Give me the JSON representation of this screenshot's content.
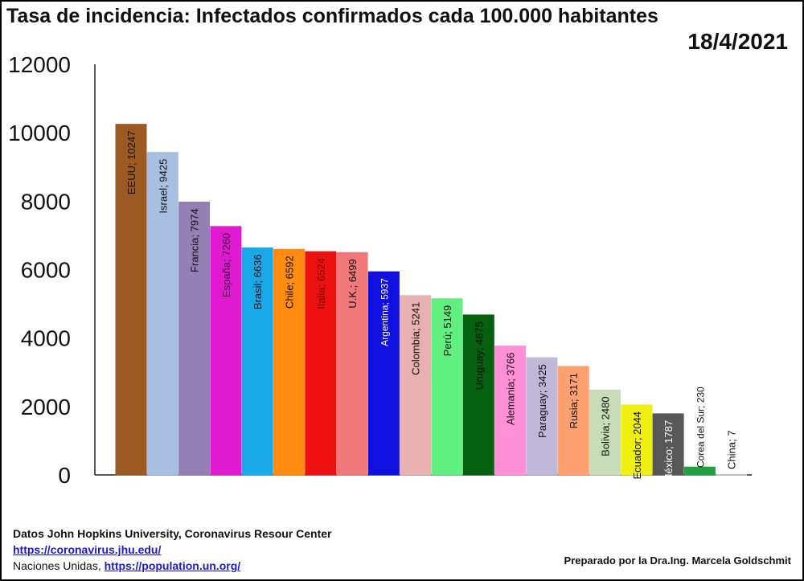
{
  "header": {
    "title": "Tasa de incidencia: Infectados confirmados cada 100.000 habitantes",
    "date": "18/4/2021"
  },
  "footer": {
    "source": "Datos  John Hopkins University, Coronavirus Resour Center",
    "link1": "https://coronavirus.jhu.edu/",
    "line3_prefix": "Naciones Unidas, ",
    "link2": "https://population.un.org/",
    "author": "Preparado por la Dra.Ing. Marcela Goldschmit"
  },
  "chart_data": {
    "type": "bar",
    "title": "Tasa de incidencia: Infectados confirmados cada 100.000 habitantes",
    "xlabel": "",
    "ylabel": "",
    "ylim": [
      0,
      12000
    ],
    "yticks": [
      "0",
      "2000",
      "4000",
      "6000",
      "8000",
      "10000",
      "12000"
    ],
    "grid": false,
    "legend": "none",
    "categories": [
      "EEUU",
      "Israel",
      "Francia",
      "España",
      "Brasil",
      "Chile",
      "Italia",
      "U.K.",
      "Argentina",
      "Colombia",
      "Perú",
      "Uruguay",
      "Alemania",
      "Paraguay",
      "Rusia",
      "Bolivia",
      "Ecuador",
      "México",
      "Corea del Sur",
      "China"
    ],
    "values": [
      10247,
      9425,
      7974,
      7260,
      6636,
      6592,
      6524,
      6499,
      5937,
      5241,
      5149,
      4675,
      3766,
      3425,
      3171,
      2480,
      2044,
      1787,
      230,
      7
    ],
    "labels": [
      "EEUU; 10247",
      "Israel; 9425",
      "Francia; 7974",
      "España; 7260",
      "Brasil; 6636",
      "Chile; 6592",
      "Italia; 6524",
      "U.K.; 6499",
      "Argentina; 5937",
      "Colombia; 5241",
      "Perú; 5149",
      "Uruguay; 4675",
      "Alemania; 3766",
      "Paraguay; 3425",
      "Rusia; 3171",
      "Bolivia; 2480",
      "Ecuador; 2044",
      "México; 1787",
      "Corea del Sur;  230",
      "China; 7"
    ],
    "colors": [
      "#9c5a22",
      "#a7bfe0",
      "#9580b5",
      "#e01ad0",
      "#1aa9e8",
      "#ff8c10",
      "#ee1111",
      "#f07878",
      "#1010e0",
      "#e8b0b0",
      "#60f080",
      "#056010",
      "#ff90d8",
      "#c0b8d8",
      "#ffa070",
      "#c8dcb8",
      "#f0f010",
      "#585858",
      "#20a040",
      "#ffffff"
    ],
    "label_colors": [
      "#111111",
      "#111111",
      "#111111",
      "#3a0a36",
      "#111111",
      "#111111",
      "#7a0000",
      "#111111",
      "#ffffff",
      "#111111",
      "#111111",
      "#111111",
      "#111111",
      "#111111",
      "#111111",
      "#111111",
      "#111111",
      "#ffffff",
      "#111111",
      "#111111"
    ]
  }
}
